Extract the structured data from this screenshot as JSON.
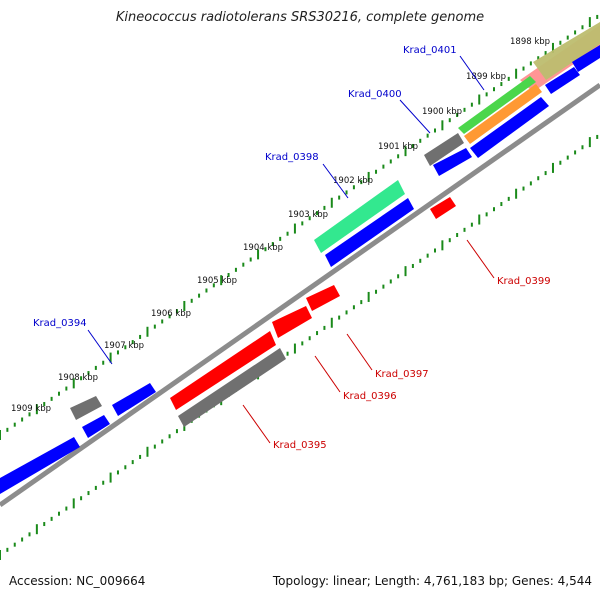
{
  "title": "Kineococcus radiotolerans SRS30216, complete genome",
  "footer": {
    "accession": "Accession: NC_009664",
    "topology": "Topology: linear; Length: 4,761,183 bp; Genes: 4,544"
  },
  "colors": {
    "axis": "#8c8c8c",
    "tick": "#1a8a1a",
    "forward_gene": "#0000ff",
    "reverse_gene": "#ff0000",
    "forward_label": "#0000cc",
    "reverse_label": "#cc0000",
    "cds_grey": "#808080"
  },
  "kbp_ticks": [
    "1898 kbp",
    "1899 kbp",
    "1900 kbp",
    "1901 kbp",
    "1902 kbp",
    "1903 kbp",
    "1904 kbp",
    "1905 kbp",
    "1906 kbp",
    "1907 kbp",
    "1908 kbp",
    "1909 kbp"
  ],
  "gene_labels": {
    "forward": [
      "Krad_0401",
      "Krad_0400",
      "Krad_0398",
      "Krad_0394"
    ],
    "reverse": [
      "Krad_0399",
      "Krad_0397",
      "Krad_0396",
      "Krad_0395"
    ]
  }
}
